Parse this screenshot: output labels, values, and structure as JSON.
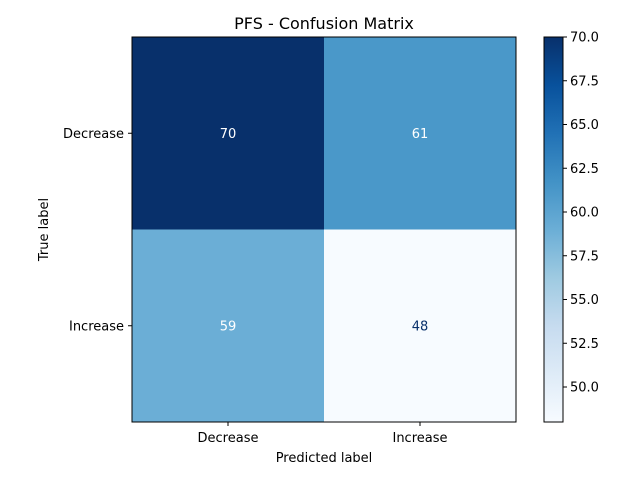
{
  "chart_data": {
    "type": "heatmap",
    "title": "PFS - Confusion Matrix",
    "xlabel": "Predicted label",
    "ylabel": "True label",
    "x_categories": [
      "Decrease",
      "Increase"
    ],
    "y_categories": [
      "Decrease",
      "Increase"
    ],
    "values": [
      [
        70,
        61
      ],
      [
        59,
        48
      ]
    ],
    "value_labels": [
      [
        "70",
        "61"
      ],
      [
        "59",
        "48"
      ]
    ],
    "colormap": "Blues",
    "cell_colors": [
      [
        "#08306b",
        "#4a98c9"
      ],
      [
        "#6baed6",
        "#f7fbff"
      ]
    ],
    "annotation_colors": [
      [
        "#ffffff",
        "#ffffff"
      ],
      [
        "#ffffff",
        "#08306b"
      ]
    ],
    "colorbar": {
      "range": [
        48,
        70
      ],
      "ticks": [
        50.0,
        52.5,
        55.0,
        57.5,
        60.0,
        62.5,
        65.0,
        67.5,
        70.0
      ],
      "tick_labels": [
        "50.0",
        "52.5",
        "55.0",
        "57.5",
        "60.0",
        "62.5",
        "65.0",
        "67.5",
        "70.0"
      ],
      "gradient": [
        "#f7fbff",
        "#deebf7",
        "#c6dbef",
        "#9ecae1",
        "#6baed6",
        "#4292c6",
        "#2171b5",
        "#08519c",
        "#08306b"
      ]
    },
    "grid": false
  }
}
